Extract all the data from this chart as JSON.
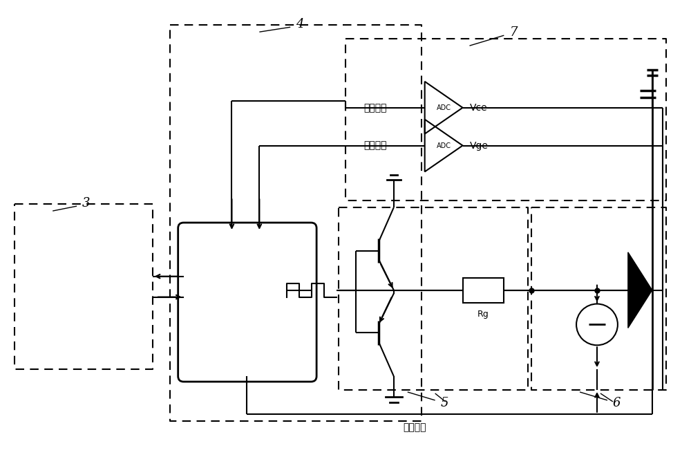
{
  "bg_color": "#ffffff",
  "lc": "#000000",
  "label_3": "3",
  "label_4": "4",
  "label_5": "5",
  "label_6": "6",
  "label_7": "7",
  "text_caiyang": "采样数据",
  "text_kongzhi": "控制信号",
  "text_Vce": "Vce",
  "text_Vge": "Vge",
  "text_Rg": "Rg",
  "text_ADC": "ADC",
  "figw": 10.0,
  "figh": 6.61,
  "dpi": 100
}
